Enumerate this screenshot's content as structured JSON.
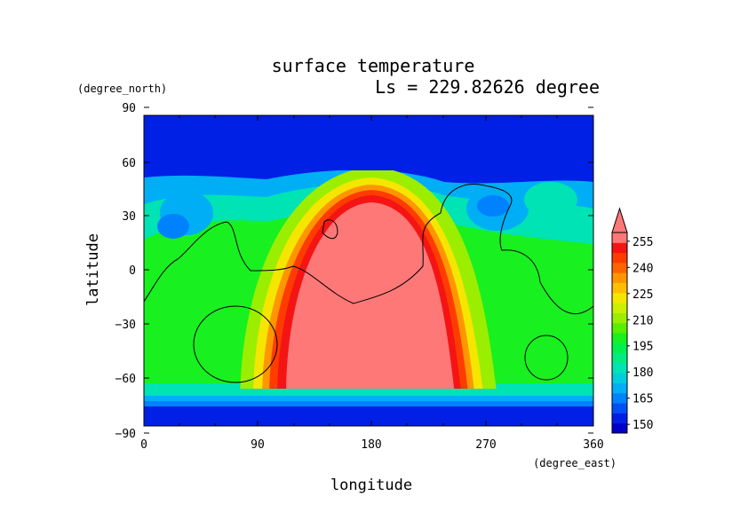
{
  "chart_data": {
    "type": "heatmap",
    "title": "surface temperature",
    "subtitle": "Ls = 229.82626 degree",
    "xlabel": "longitude",
    "ylabel": "latitude",
    "xunit": "(degree_east)",
    "yunit": "(degree_north)",
    "xlim": [
      0,
      360
    ],
    "ylim": [
      -90,
      90
    ],
    "xticks": [
      "0",
      "90",
      "180",
      "270",
      "360"
    ],
    "yticks": [
      "90",
      "60",
      "30",
      "0",
      "−30",
      "−60",
      "−90"
    ],
    "colorbar": {
      "levels": [
        145,
        150,
        155,
        160,
        165,
        170,
        175,
        180,
        185,
        190,
        195,
        200,
        205,
        210,
        215,
        220,
        225,
        230,
        235,
        240,
        245,
        250,
        255,
        260
      ],
      "colors": [
        "#0000c8",
        "#0020e6",
        "#0050f5",
        "#0082ff",
        "#00aef5",
        "#00cddd",
        "#00e3b4",
        "#00ec82",
        "#00f050",
        "#18f020",
        "#5aee00",
        "#9bee00",
        "#cdee00",
        "#f5e600",
        "#ffbe00",
        "#ff9600",
        "#ff6400",
        "#ff3c00",
        "#f51414",
        "#ff7878"
      ],
      "labels": [
        "150",
        "165",
        "180",
        "195",
        "210",
        "225",
        "240",
        "255"
      ],
      "extend": "max"
    },
    "field": {
      "polar_south": "low (~150 K) south of -72",
      "polar_north": "low (~150 K) north of 55",
      "warm_region": "high (>255 K) centred on lon 175, lat -20"
    }
  }
}
